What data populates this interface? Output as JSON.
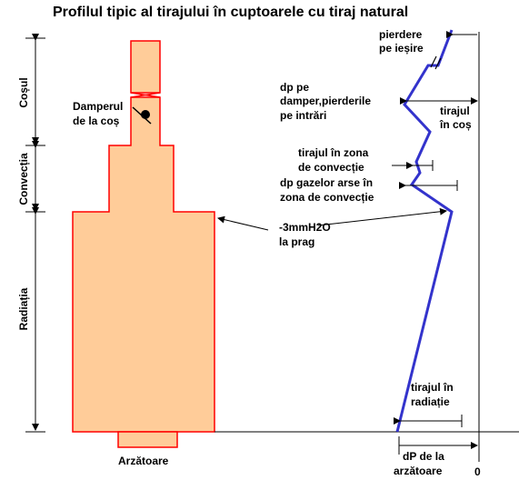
{
  "title": "Profilul tipic al tirajului în cuptoarele cu tiraj natural",
  "sections": {
    "chimney": "Coșul",
    "convection": "Convecția",
    "radiation": "Radiația"
  },
  "labels": {
    "damper": [
      "Damperul",
      "de la coș"
    ],
    "burner": "Arzătoare",
    "arch": [
      "-3mmH2O",
      "la prag"
    ],
    "outlet_loss": [
      "pierdere",
      "pe ieșire"
    ],
    "damper_loss": [
      "dp pe",
      "damper,pierderile",
      "pe intrări"
    ],
    "stack_draft": [
      "tirajul",
      "în coș"
    ],
    "convection_draft": [
      "tirajul în zona",
      "de convecție"
    ],
    "convection_dp": [
      "dp gazelor arse în",
      "zona de convecție"
    ],
    "radiation_draft": [
      "tirajul în",
      "radiație"
    ],
    "burner_dp": [
      "dP de la",
      "arzătoare"
    ],
    "zero": "0"
  },
  "colors": {
    "fill": "#FFCC99",
    "outline": "#FF0000",
    "profile": "#3333CC",
    "line": "#000000"
  }
}
